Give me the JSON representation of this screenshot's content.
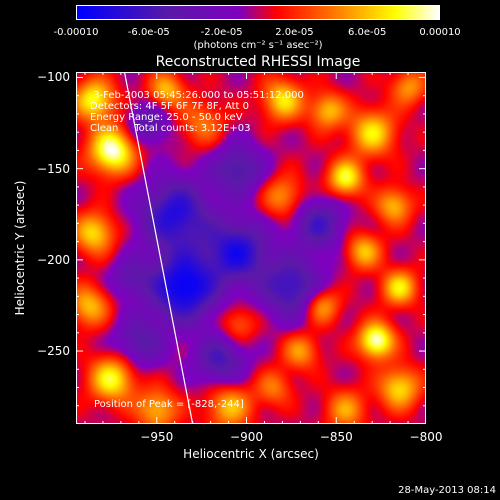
{
  "colorbar": {
    "ticks": [
      "-0.00010",
      "-6.0e-05",
      "-2.0e-05",
      "2.0e-05",
      "6.0e-05",
      "0.00010"
    ],
    "tick_values": [
      -0.0001,
      -6e-05,
      -2e-05,
      2e-05,
      6e-05,
      0.0001
    ],
    "range": [
      -0.0001,
      0.0001
    ],
    "unit": "(photons cm⁻² s⁻¹ asec⁻²)",
    "colors": [
      "#0000ff",
      "#5a1aa8",
      "#8000c0",
      "#ff0000",
      "#ff8000",
      "#ffff00",
      "#ffffff"
    ]
  },
  "chart_data": {
    "type": "heatmap",
    "title": "Reconstructed RHESSI Image",
    "xlabel": "Heliocentric X (arcsec)",
    "ylabel": "Heliocentric Y (arcsec)",
    "xlim": [
      -995,
      -800
    ],
    "ylim": [
      -290,
      -97
    ],
    "xticks": [
      -950,
      -900,
      -850,
      -800
    ],
    "yticks": [
      -100,
      -150,
      -200,
      -250
    ],
    "info_lines": [
      " 3-Feb-2003 05:45:26.000 to 05:51:12.000",
      "Detectors: 4F 5F 6F 7F 8F, Att 0",
      "Energy Range: 25.0 - 50.0 keV",
      "Clean     Total counts: 3.12E+03"
    ],
    "peak_label": "Position of Peak = [-828,-244]",
    "peak": [
      -828,
      -244
    ],
    "limb_line": [
      [
        -968,
        -97
      ],
      [
        -930,
        -290
      ]
    ],
    "sources": [
      {
        "x": -975,
        "y": -140,
        "amp": 0.0001,
        "sigma": 9
      },
      {
        "x": -985,
        "y": -112,
        "amp": 8e-05,
        "sigma": 8
      },
      {
        "x": -945,
        "y": -107,
        "amp": 6e-05,
        "sigma": 7
      },
      {
        "x": -925,
        "y": -125,
        "amp": 4e-05,
        "sigma": 9
      },
      {
        "x": -880,
        "y": -112,
        "amp": 7e-05,
        "sigma": 8
      },
      {
        "x": -855,
        "y": -118,
        "amp": 6e-05,
        "sigma": 7
      },
      {
        "x": -830,
        "y": -130,
        "amp": 7e-05,
        "sigma": 9
      },
      {
        "x": -810,
        "y": -105,
        "amp": 5e-05,
        "sigma": 7
      },
      {
        "x": -845,
        "y": -155,
        "amp": 8e-05,
        "sigma": 7
      },
      {
        "x": -818,
        "y": -170,
        "amp": 6e-05,
        "sigma": 7
      },
      {
        "x": -880,
        "y": -165,
        "amp": 5e-05,
        "sigma": 8
      },
      {
        "x": -835,
        "y": -195,
        "amp": 6e-05,
        "sigma": 7
      },
      {
        "x": -815,
        "y": -215,
        "amp": 7e-05,
        "sigma": 7
      },
      {
        "x": -985,
        "y": -185,
        "amp": 7e-05,
        "sigma": 8
      },
      {
        "x": -988,
        "y": -225,
        "amp": 6e-05,
        "sigma": 8
      },
      {
        "x": -975,
        "y": -265,
        "amp": 8e-05,
        "sigma": 9
      },
      {
        "x": -950,
        "y": -282,
        "amp": 6e-05,
        "sigma": 8
      },
      {
        "x": -910,
        "y": -280,
        "amp": 6e-05,
        "sigma": 9
      },
      {
        "x": -870,
        "y": -250,
        "amp": 5e-05,
        "sigma": 7
      },
      {
        "x": -858,
        "y": -225,
        "amp": 6e-05,
        "sigma": 7
      },
      {
        "x": -828,
        "y": -244,
        "amp": 0.0001,
        "sigma": 7
      },
      {
        "x": -815,
        "y": -270,
        "amp": 7e-05,
        "sigma": 8
      },
      {
        "x": -845,
        "y": -282,
        "amp": 5e-05,
        "sigma": 8
      },
      {
        "x": -885,
        "y": -270,
        "amp": 4e-05,
        "sigma": 7
      },
      {
        "x": -905,
        "y": -235,
        "amp": 4e-05,
        "sigma": 7
      },
      {
        "x": -940,
        "y": -175,
        "amp": -8e-05,
        "sigma": 14
      },
      {
        "x": -935,
        "y": -215,
        "amp": -0.0001,
        "sigma": 13
      },
      {
        "x": -905,
        "y": -195,
        "amp": -8e-05,
        "sigma": 12
      },
      {
        "x": -905,
        "y": -150,
        "amp": -6e-05,
        "sigma": 10
      },
      {
        "x": -875,
        "y": -215,
        "amp": -7e-05,
        "sigma": 12
      },
      {
        "x": -860,
        "y": -180,
        "amp": -6e-05,
        "sigma": 10
      },
      {
        "x": -960,
        "y": -245,
        "amp": -5e-05,
        "sigma": 10
      },
      {
        "x": -915,
        "y": -255,
        "amp": -6e-05,
        "sigma": 10
      },
      {
        "x": -955,
        "y": -125,
        "amp": -5e-05,
        "sigma": 8
      },
      {
        "x": -965,
        "y": -210,
        "amp": -4e-05,
        "sigma": 8
      }
    ]
  },
  "footer": {
    "timestamp": "28-May-2013 08:14"
  }
}
